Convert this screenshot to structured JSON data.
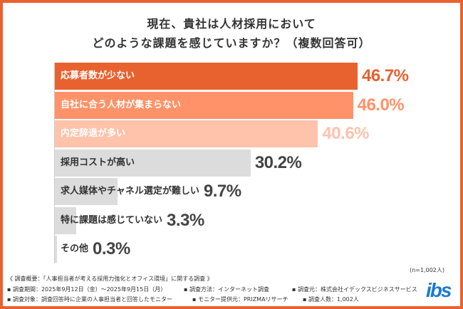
{
  "chart_data": {
    "type": "bar",
    "orientation": "horizontal",
    "title": [
      "現在、貴社は人材採用において",
      "どのような課題を感じていますか？（複数回答可）"
    ],
    "categories": [
      "応募者数が少ない",
      "自社に合う人材が集まらない",
      "内定辞退が多い",
      "採用コストが高い",
      "求人媒体やチャネル選定が難しい",
      "特に課題は感じていない",
      "その他"
    ],
    "values": [
      46.7,
      46.0,
      40.6,
      30.2,
      9.7,
      3.3,
      0.3
    ],
    "value_labels": [
      "46.7%",
      "46.0%",
      "40.6%",
      "30.2%",
      "9.7%",
      "3.3%",
      "0.3%"
    ],
    "bar_colors": [
      "#e8622f",
      "#ff9268",
      "#ffc2aa",
      "#dcdcdc",
      "#dcdcdc",
      "#dcdcdc",
      "#dcdcdc"
    ],
    "label_colors": [
      "#ffffff",
      "#ffffff",
      "#ffffff",
      "#333333",
      "#333333",
      "#333333",
      "#333333"
    ],
    "value_colors": [
      "#e8622f",
      "#ff9268",
      "#ffc2aa",
      "#444444",
      "#444444",
      "#444444",
      "#444444"
    ],
    "grid": false,
    "legend": "none"
  },
  "note_n": "(n=1,002人)",
  "footer": {
    "line1": "《 調査概要：「人事担当者が考える採用力強化とオフィス環境」に関する調査 》",
    "period": "▪ 調査期間：2025年9月12日（金）〜2025年9月15日（月）",
    "method": "▪ 調査方法：インターネット調査",
    "source": "▪ 調査元：株式会社イデックスビジネスサービス",
    "target": "▪ 調査対象：調査回答時に企業の人事担当者と回答したモニター",
    "provider": "▪ モニター提供元：PRIZMAリサーチ",
    "count": "▪ 調査人数：1,002人"
  },
  "logo": "ibs",
  "accent": "#e8622f"
}
